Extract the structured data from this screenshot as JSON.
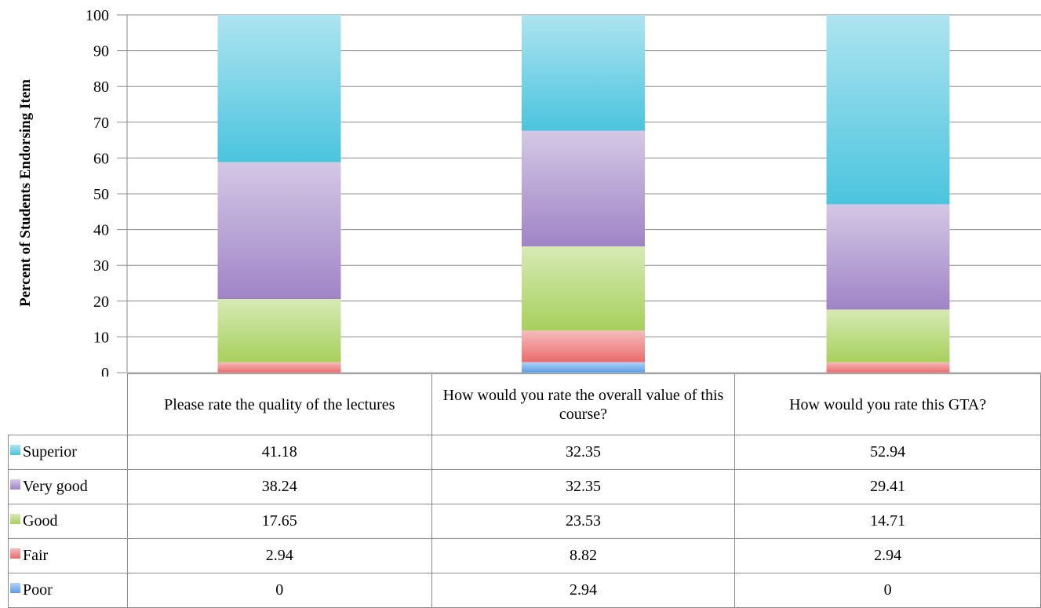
{
  "chart_data": {
    "type": "bar",
    "stacked": true,
    "ylabel": "Percent of Students Endorsing Item",
    "ylim": [
      0,
      100
    ],
    "yticks": [
      0,
      10,
      20,
      30,
      40,
      50,
      60,
      70,
      80,
      90,
      100
    ],
    "grid": true,
    "legend": "data table rows (left)",
    "categories": [
      "Please rate the quality of the lectures",
      "How would you rate the overall value of this course?",
      "How would you rate this GTA?"
    ],
    "series": [
      {
        "name": "Superior",
        "values": [
          41.18,
          32.35,
          52.94
        ],
        "color": "#4bc4de",
        "display": [
          "41.18",
          "32.35",
          "52.94"
        ]
      },
      {
        "name": "Very good",
        "values": [
          38.24,
          32.35,
          29.41
        ],
        "color": "#9f84c6",
        "display": [
          "38.24",
          "32.35",
          "29.41"
        ]
      },
      {
        "name": "Good",
        "values": [
          17.65,
          23.53,
          14.71
        ],
        "color": "#a6d05c",
        "display": [
          "17.65",
          "23.53",
          "14.71"
        ]
      },
      {
        "name": "Fair",
        "values": [
          2.94,
          8.82,
          2.94
        ],
        "color": "#ea6b6b",
        "display": [
          "2.94",
          "8.82",
          "2.94"
        ]
      },
      {
        "name": "Poor",
        "values": [
          0,
          2.94,
          0
        ],
        "color": "#5a9ce6",
        "display": [
          "0",
          "2.94",
          "0"
        ]
      }
    ]
  }
}
